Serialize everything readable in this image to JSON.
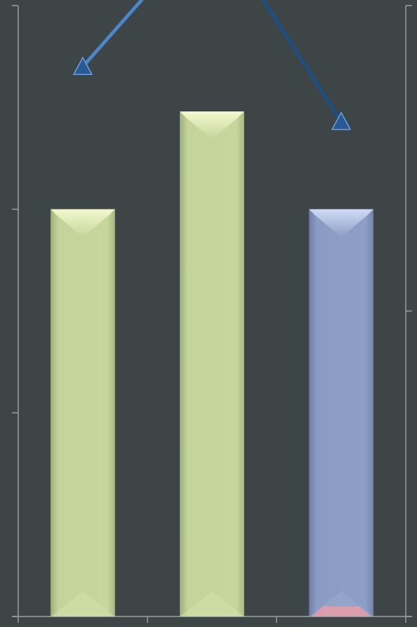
{
  "chart_data": {
    "type": "bar",
    "title": "",
    "xlabel": "",
    "ylabel": "",
    "categories": [
      "",
      "",
      ""
    ],
    "ylim": [
      0,
      3
    ],
    "y2lim": [
      0,
      2
    ],
    "series": [
      {
        "kind": "bar",
        "values": [
          2.0,
          2.48,
          2.0
        ],
        "colors": [
          "#c5d59b",
          "#c5d59b",
          "#8c9ec4"
        ]
      },
      {
        "kind": "bar-stack-top",
        "values": [
          0,
          0,
          0.05
        ],
        "colors": [
          "#e89aa6",
          "#e89aa6",
          "#e89aa6"
        ]
      },
      {
        "kind": "line",
        "axis": "secondary",
        "values": [
          1.8,
          2.28,
          1.62
        ],
        "colors": [
          "#4a86c8",
          "#1e4f82"
        ],
        "marker": "triangle"
      }
    ],
    "grid": false,
    "legend": "none",
    "colors": {
      "background": "#3d4547",
      "axis": "#9aa0a2"
    }
  }
}
